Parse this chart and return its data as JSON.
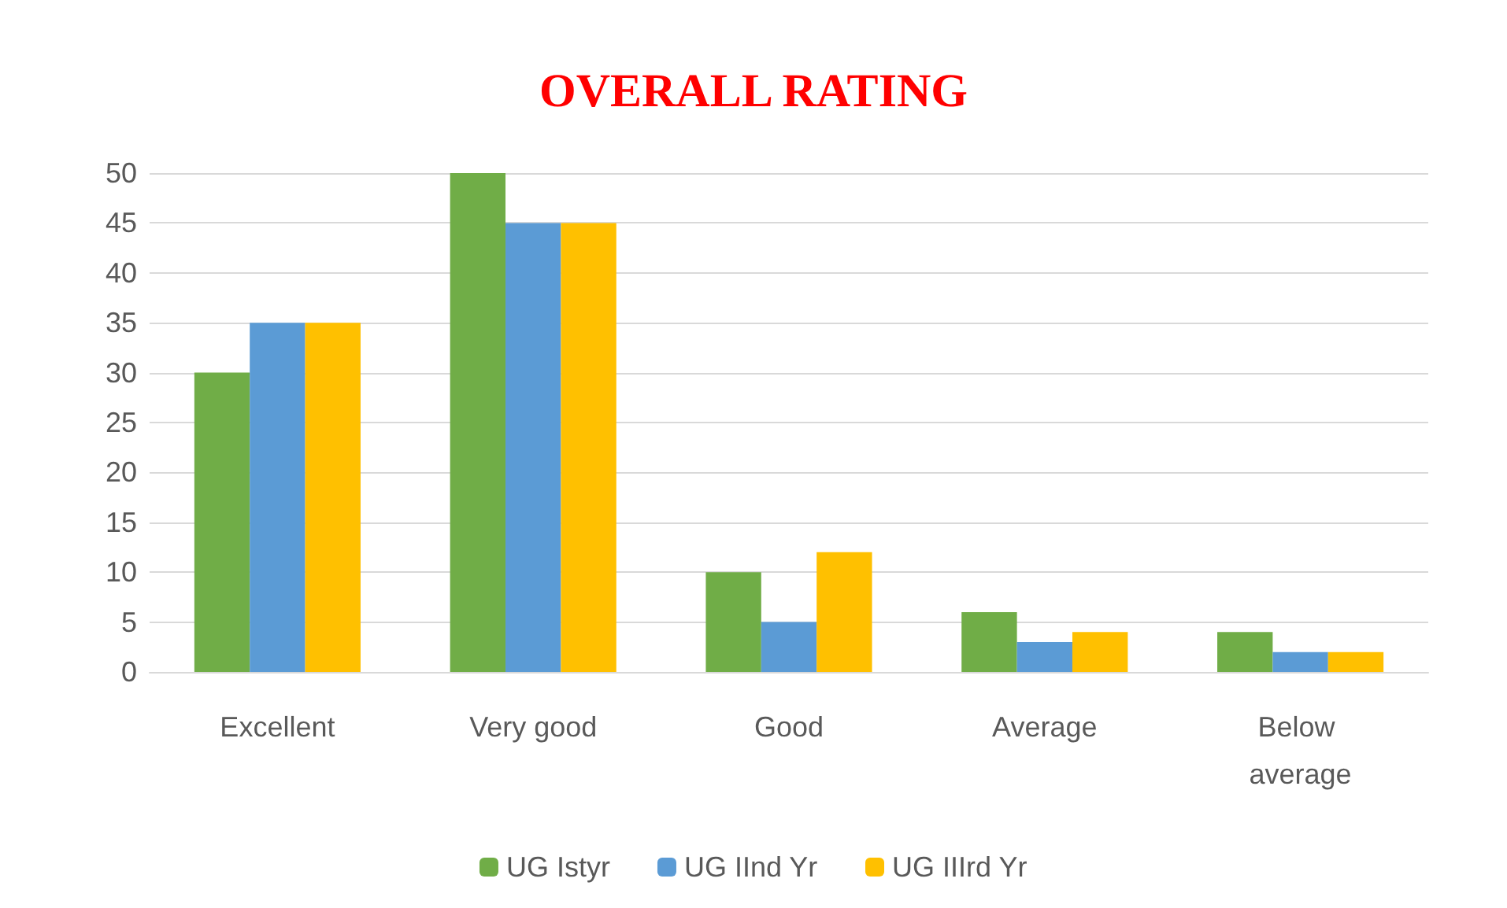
{
  "chart_data": {
    "type": "bar",
    "title": "OVERALL RATING",
    "categories": [
      "Excellent",
      "Very good",
      "Good",
      "Average",
      "Below average"
    ],
    "series": [
      {
        "name": "UG Istyr",
        "color": "#70ad47",
        "values": [
          30,
          50,
          10,
          6,
          4
        ]
      },
      {
        "name": "UG IInd Yr",
        "color": "#5b9bd5",
        "values": [
          35,
          45,
          5,
          3,
          2
        ]
      },
      {
        "name": "UG IIIrd Yr",
        "color": "#ffc000",
        "values": [
          35,
          45,
          12,
          4,
          2
        ]
      }
    ],
    "ylim": [
      0,
      50
    ],
    "yticks": [
      0,
      5,
      10,
      15,
      20,
      25,
      30,
      35,
      40,
      45,
      50
    ],
    "grid": "y",
    "legend": "bottom"
  }
}
